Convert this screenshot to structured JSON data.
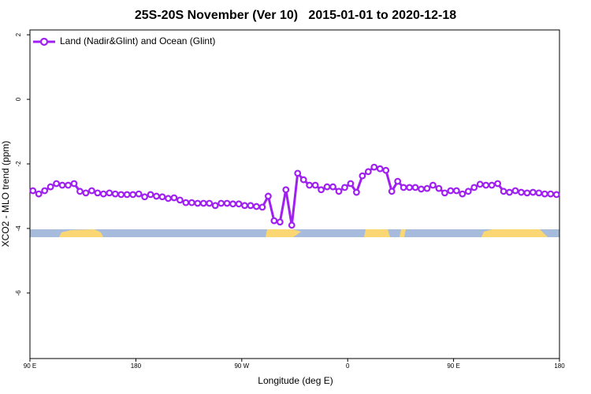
{
  "chart_data": {
    "type": "line",
    "title": "25S-20S November (Ver 10)   2015-01-01 to 2020-12-18",
    "x_label": "Longitude (deg E)",
    "y_label": "XCO2 - MLO trend (ppm)",
    "xlim": [
      90,
      540
    ],
    "ylim": [
      -8.03,
      2.15
    ],
    "xticks": [
      {
        "value": 90,
        "label": "90 E"
      },
      180,
      {
        "value": 270,
        "label": "90 W"
      },
      {
        "value": 360,
        "label": "0"
      },
      {
        "value": 450,
        "label": "90 E"
      },
      {
        "value": 540,
        "label": "180"
      }
    ],
    "yticks": [
      2,
      0,
      -2,
      -4,
      -6
    ],
    "grid": false,
    "legend": "top-left",
    "series": [
      {
        "name": "Land (Nadir&Glint) and Ocean (Glint)",
        "color": "#a020f0",
        "x": [
          92.5,
          97.5,
          102.5,
          107.5,
          112.5,
          117.5,
          122.5,
          127.5,
          132.5,
          137.5,
          142.5,
          147.5,
          152.5,
          157.5,
          162.5,
          167.5,
          172.5,
          177.5,
          182.5,
          187.5,
          192.5,
          197.5,
          202.5,
          207.5,
          212.5,
          217.5,
          222.5,
          227.5,
          232.5,
          237.5,
          242.5,
          247.5,
          252.5,
          257.5,
          262.5,
          267.5,
          272.5,
          277.5,
          282.5,
          287.5,
          292.5,
          297.5,
          302.5,
          307.5,
          312.5,
          317.5,
          322.5,
          327.5,
          332.5,
          337.5,
          342.5,
          347.5,
          352.5,
          357.5,
          362.5,
          367.5,
          372.5,
          377.5,
          382.5,
          387.5,
          392.5,
          397.5,
          402.5,
          407.5,
          412.5,
          417.5,
          422.5,
          427.5,
          432.5,
          437.5,
          442.5,
          447.5,
          452.5,
          457.5,
          462.5,
          467.5,
          472.5,
          477.5,
          482.5,
          487.5,
          492.5,
          497.5,
          502.5,
          507.5,
          512.5,
          517.5,
          522.5,
          527.5,
          532.5,
          537.5
        ],
        "values": [
          -2.83,
          -2.93,
          -2.83,
          -2.71,
          -2.61,
          -2.66,
          -2.66,
          -2.61,
          -2.85,
          -2.9,
          -2.83,
          -2.9,
          -2.93,
          -2.9,
          -2.93,
          -2.95,
          -2.95,
          -2.95,
          -2.93,
          -3.02,
          -2.95,
          -3.0,
          -3.02,
          -3.07,
          -3.05,
          -3.12,
          -3.2,
          -3.2,
          -3.22,
          -3.22,
          -3.22,
          -3.29,
          -3.22,
          -3.22,
          -3.24,
          -3.24,
          -3.29,
          -3.29,
          -3.32,
          -3.34,
          -3.0,
          -3.76,
          -3.8,
          -2.8,
          -3.9,
          -2.29,
          -2.49,
          -2.66,
          -2.66,
          -2.8,
          -2.71,
          -2.71,
          -2.85,
          -2.73,
          -2.61,
          -2.88,
          -2.37,
          -2.24,
          -2.1,
          -2.15,
          -2.2,
          -2.85,
          -2.54,
          -2.73,
          -2.73,
          -2.73,
          -2.78,
          -2.76,
          -2.66,
          -2.76,
          -2.9,
          -2.83,
          -2.83,
          -2.93,
          -2.85,
          -2.73,
          -2.63,
          -2.66,
          -2.66,
          -2.61,
          -2.85,
          -2.88,
          -2.83,
          -2.88,
          -2.9,
          -2.88,
          -2.9,
          -2.93,
          -2.93,
          -2.95
        ]
      }
    ]
  }
}
